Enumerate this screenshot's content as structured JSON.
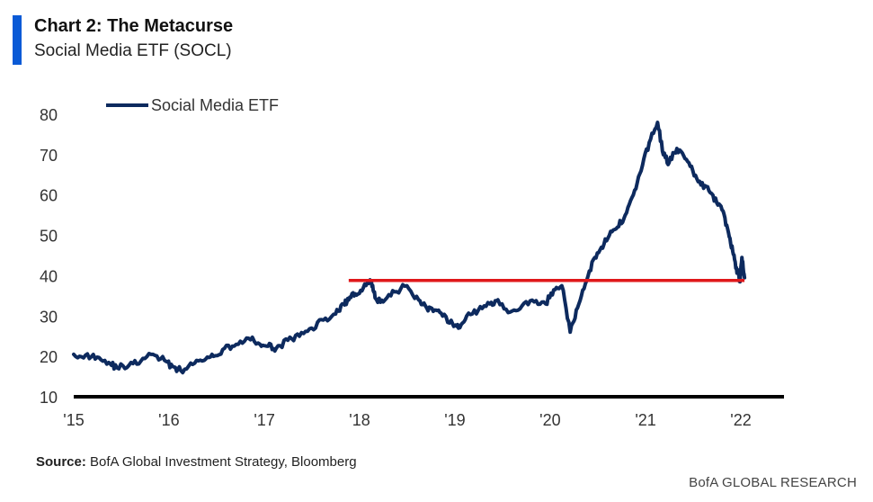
{
  "header": {
    "title": "Chart 2: The Metacurse",
    "subtitle": "Social Media ETF (SOCL)"
  },
  "footer": {
    "source_label": "Source:",
    "source_text": "BofA Global Investment Strategy, Bloomberg",
    "brand": "BofA GLOBAL RESEARCH"
  },
  "colors": {
    "series": "#0d2a5e",
    "reference_line": "#e0181b",
    "axis": "#000000",
    "accent_bar": "#0a5ad6"
  },
  "chart_data": {
    "type": "line",
    "title": "Chart 2: The Metacurse",
    "subtitle": "Social Media ETF (SOCL)",
    "xlabel": "",
    "ylabel": "",
    "ylim": [
      10,
      80
    ],
    "yticks": [
      10,
      20,
      30,
      40,
      50,
      60,
      70,
      80
    ],
    "xlim": [
      "2015-01-01",
      "2022-01-15"
    ],
    "xticks": [
      {
        "label": "'15",
        "date": "2015-01-01"
      },
      {
        "label": "'16",
        "date": "2016-01-01"
      },
      {
        "label": "'17",
        "date": "2017-01-01"
      },
      {
        "label": "'18",
        "date": "2018-01-01"
      },
      {
        "label": "'19",
        "date": "2019-01-01"
      },
      {
        "label": "'20",
        "date": "2020-01-01"
      },
      {
        "label": "'21",
        "date": "2021-01-01"
      },
      {
        "label": "'22",
        "date": "2022-01-01"
      }
    ],
    "grid": false,
    "legend": {
      "position": "top-left",
      "entries": [
        "Social Media ETF"
      ]
    },
    "series": [
      {
        "name": "Social Media ETF",
        "x": [
          "2015-01-01",
          "2015-02-15",
          "2015-04-01",
          "2015-05-15",
          "2015-06-15",
          "2015-08-01",
          "2015-09-15",
          "2015-11-01",
          "2015-12-15",
          "2016-01-15",
          "2016-02-15",
          "2016-04-01",
          "2016-05-15",
          "2016-06-20",
          "2016-08-01",
          "2016-09-15",
          "2016-11-01",
          "2016-12-15",
          "2017-01-15",
          "2017-02-15",
          "2017-04-01",
          "2017-05-15",
          "2017-07-01",
          "2017-08-15",
          "2017-10-01",
          "2017-11-01",
          "2017-11-20",
          "2017-12-15",
          "2018-01-15",
          "2018-02-15",
          "2018-03-01",
          "2018-04-01",
          "2018-05-15",
          "2018-07-01",
          "2018-08-15",
          "2018-09-15",
          "2018-10-15",
          "2018-11-15",
          "2018-12-24",
          "2019-01-15",
          "2019-02-15",
          "2019-04-01",
          "2019-05-15",
          "2019-06-15",
          "2019-08-01",
          "2019-09-15",
          "2019-11-01",
          "2019-12-15",
          "2020-01-15",
          "2020-02-15",
          "2020-03-18",
          "2020-04-15",
          "2020-05-15",
          "2020-06-15",
          "2020-07-15",
          "2020-08-15",
          "2020-09-15",
          "2020-10-15",
          "2020-11-15",
          "2020-12-15",
          "2021-01-15",
          "2021-02-16",
          "2021-03-10",
          "2021-04-01",
          "2021-05-01",
          "2021-06-01",
          "2021-07-01",
          "2021-08-01",
          "2021-09-01",
          "2021-10-01",
          "2021-10-25",
          "2021-11-15",
          "2021-12-01",
          "2021-12-15",
          "2021-12-29",
          "2022-01-05",
          "2022-01-15"
        ],
        "values": [
          20.5,
          20.3,
          19.8,
          18.5,
          17.2,
          17.8,
          18.8,
          20.5,
          19.0,
          17.5,
          16.5,
          18.0,
          19.0,
          20.0,
          22.0,
          23.0,
          24.5,
          23.0,
          22.5,
          22.0,
          24.0,
          25.0,
          27.0,
          29.0,
          30.5,
          33.0,
          34.0,
          35.5,
          37.0,
          38.5,
          34.5,
          33.5,
          36.0,
          37.5,
          34.0,
          32.0,
          31.5,
          30.0,
          28.0,
          27.0,
          30.0,
          31.5,
          33.0,
          34.0,
          31.0,
          32.5,
          33.5,
          33.0,
          36.5,
          37.5,
          26.0,
          32.0,
          38.0,
          44.0,
          47.0,
          50.0,
          52.0,
          55.0,
          60.0,
          66.0,
          73.0,
          78.0,
          70.0,
          68.0,
          71.5,
          69.0,
          66.0,
          62.5,
          61.0,
          58.0,
          56.0,
          50.5,
          46.0,
          42.0,
          38.5,
          44.5,
          39.5
        ]
      }
    ],
    "reference_lines": [
      {
        "y": 38.8,
        "x_start": "2017-11-20",
        "x_end": "2022-01-15"
      }
    ]
  }
}
